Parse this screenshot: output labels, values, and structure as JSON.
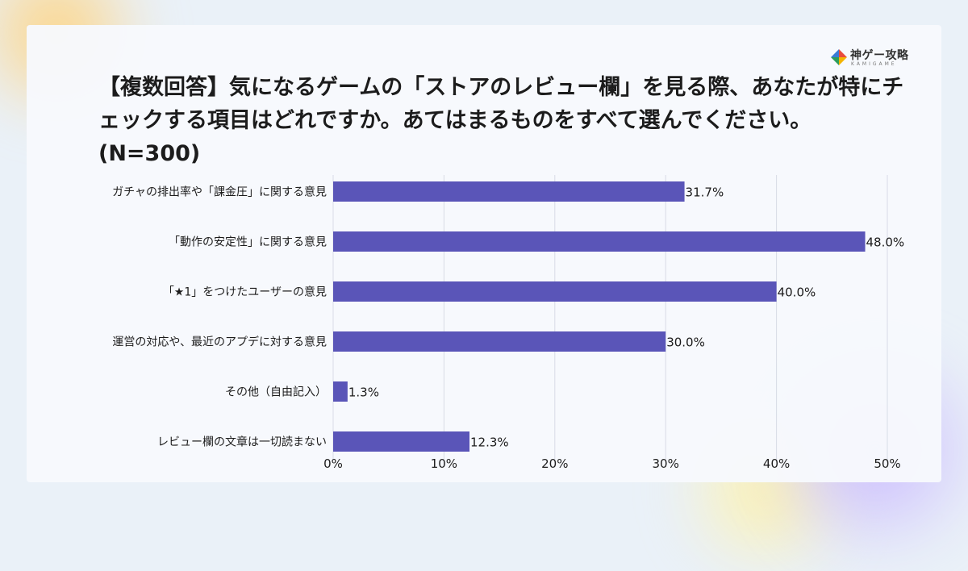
{
  "brand": {
    "name": "神ゲー攻略",
    "sub": "KAMIGAME"
  },
  "title": "【複数回答】気になるゲームの「ストアのレビュー欄」を見る際、あなたが特にチェックする項目はどれですか。あてはまるものをすべて選んでください。(N=300)",
  "colors": {
    "bar": "#5a55b8",
    "grid": "#d8dce6",
    "text": "#1c1c1c"
  },
  "chart_data": {
    "type": "bar",
    "orientation": "horizontal",
    "title": "【複数回答】気になるゲームの「ストアのレビュー欄」を見る際、あなたが特にチェックする項目はどれですか。あてはまるものをすべて選んでください。(N=300)",
    "categories": [
      "ガチャの排出率や「課金圧」に関する意見",
      "「動作の安定性」に関する意見",
      "「★1」をつけたユーザーの意見",
      "運営の対応や、最近のアプデに対する意見",
      "その他（自由記入）",
      "レビュー欄の文章は一切読まない"
    ],
    "values": [
      31.7,
      48.0,
      40.0,
      30.0,
      1.3,
      12.3
    ],
    "value_labels": [
      "31.7%",
      "48.0%",
      "40.0%",
      "30.0%",
      "1.3%",
      "12.3%"
    ],
    "xlim": [
      0,
      50
    ],
    "xticks": [
      "0%",
      "10%",
      "20%",
      "30%",
      "40%",
      "50%"
    ],
    "grid": true,
    "legend": "none"
  }
}
